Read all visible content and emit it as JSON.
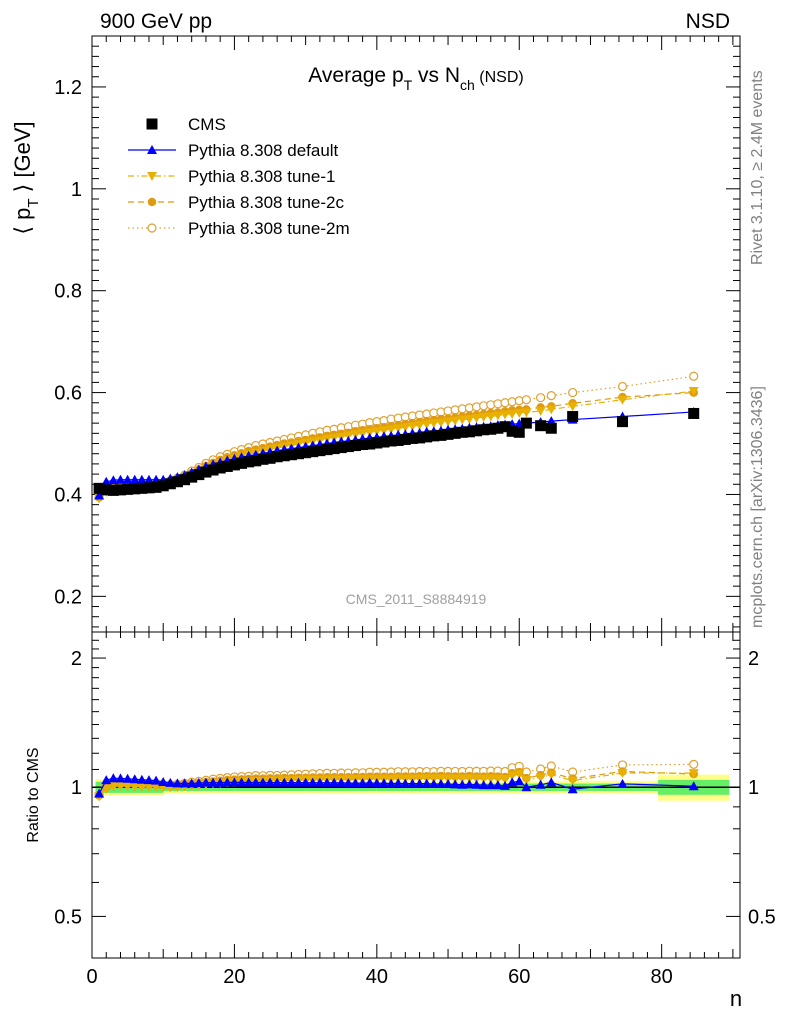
{
  "header": {
    "left": "900 GeV pp",
    "right": "NSD"
  },
  "side_text": {
    "rivet": "Rivet 3.1.10, ≥ 2.4M events",
    "mcplots": "mcplots.cern.ch [arXiv:1306.3436]"
  },
  "colors": {
    "cms": "#000000",
    "default": "#0000ff",
    "tune1": "#e8b000",
    "tune2c": "#e09a10",
    "tune2m": "#e0a030",
    "band_inner": "#66ee66",
    "band_outer": "#ffff88"
  },
  "chart_data": [
    {
      "type": "scatter",
      "title": "Average p_T vs N_ch (NSD)",
      "title_parts": {
        "a": "Average p",
        "a_sub": "T",
        "b": " vs N",
        "b_sub": "ch",
        "c": " (NSD)"
      },
      "ylabel": "⟨ p_T ⟩ [GeV]",
      "ylabel_parts": {
        "a": "⟨ p",
        "sub": "T",
        "b": " ⟩ [GeV]"
      },
      "xlabel": "n",
      "xlim": [
        0,
        91
      ],
      "ylim": [
        0.13,
        1.3
      ],
      "yticks": [
        0.2,
        0.4,
        0.6,
        0.8,
        1,
        1.2
      ],
      "ytick_labels": [
        "0.2",
        "0.4",
        "0.6",
        "0.8",
        "1",
        "1.2"
      ],
      "watermark": "CMS_2011_S8884919",
      "legend_position": "top-left",
      "series": [
        {
          "name": "CMS",
          "marker": "square",
          "line": "none",
          "x": [
            1,
            2,
            3,
            4,
            5,
            6,
            7,
            8,
            9,
            10,
            11,
            12,
            13,
            14,
            15,
            16,
            17,
            18,
            19,
            20,
            21,
            22,
            23,
            24,
            25,
            26,
            27,
            28,
            29,
            30,
            31,
            32,
            33,
            34,
            35,
            36,
            37,
            38,
            39,
            40,
            41,
            42,
            43,
            44,
            45,
            46,
            47,
            48,
            49,
            50,
            51,
            52,
            53,
            54,
            55,
            56,
            57,
            58,
            59,
            60,
            61,
            63,
            64.5,
            67.5,
            74.5,
            84.5
          ],
          "y": [
            0.412,
            0.409,
            0.408,
            0.409,
            0.41,
            0.411,
            0.412,
            0.413,
            0.414,
            0.417,
            0.421,
            0.425,
            0.429,
            0.434,
            0.439,
            0.444,
            0.448,
            0.452,
            0.455,
            0.458,
            0.461,
            0.464,
            0.466,
            0.469,
            0.471,
            0.474,
            0.476,
            0.478,
            0.48,
            0.482,
            0.484,
            0.486,
            0.488,
            0.49,
            0.492,
            0.494,
            0.496,
            0.498,
            0.499,
            0.501,
            0.503,
            0.505,
            0.506,
            0.508,
            0.51,
            0.511,
            0.513,
            0.515,
            0.516,
            0.518,
            0.52,
            0.522,
            0.523,
            0.525,
            0.527,
            0.528,
            0.53,
            0.533,
            0.524,
            0.522,
            0.54,
            0.535,
            0.53,
            0.553,
            0.543,
            0.559
          ]
        },
        {
          "name": "Pythia 8.308 default",
          "marker": "triangle-up",
          "line": "solid",
          "x": [
            1,
            2,
            3,
            4,
            5,
            6,
            7,
            8,
            9,
            10,
            11,
            12,
            13,
            14,
            15,
            16,
            17,
            18,
            19,
            20,
            21,
            22,
            23,
            24,
            25,
            26,
            27,
            28,
            29,
            30,
            31,
            32,
            33,
            34,
            35,
            36,
            37,
            38,
            39,
            40,
            41,
            42,
            43,
            44,
            45,
            46,
            47,
            48,
            49,
            50,
            51,
            52,
            53,
            54,
            55,
            56,
            57,
            58,
            59,
            60,
            61,
            63,
            64.5,
            67.5,
            74.5,
            84.5
          ],
          "y": [
            0.398,
            0.425,
            0.428,
            0.429,
            0.429,
            0.429,
            0.429,
            0.429,
            0.429,
            0.429,
            0.431,
            0.434,
            0.438,
            0.443,
            0.449,
            0.455,
            0.459,
            0.463,
            0.467,
            0.47,
            0.473,
            0.476,
            0.478,
            0.481,
            0.483,
            0.486,
            0.488,
            0.49,
            0.492,
            0.494,
            0.496,
            0.498,
            0.5,
            0.502,
            0.504,
            0.505,
            0.507,
            0.509,
            0.511,
            0.512,
            0.514,
            0.515,
            0.517,
            0.518,
            0.52,
            0.521,
            0.523,
            0.524,
            0.525,
            0.527,
            0.528,
            0.529,
            0.531,
            0.532,
            0.533,
            0.534,
            0.536,
            0.537,
            0.538,
            0.539,
            0.54,
            0.542,
            0.544,
            0.547,
            0.553,
            0.562
          ]
        },
        {
          "name": "Pythia 8.308 tune-1",
          "marker": "triangle-down",
          "line": "dashdot",
          "x": [
            1,
            2,
            3,
            4,
            5,
            6,
            7,
            8,
            9,
            10,
            11,
            12,
            13,
            14,
            15,
            16,
            17,
            18,
            19,
            20,
            21,
            22,
            23,
            24,
            25,
            26,
            27,
            28,
            29,
            30,
            31,
            32,
            33,
            34,
            35,
            36,
            37,
            38,
            39,
            40,
            41,
            42,
            43,
            44,
            45,
            46,
            47,
            48,
            49,
            50,
            51,
            52,
            53,
            54,
            55,
            56,
            57,
            58,
            59,
            60,
            61,
            63,
            64.5,
            67.5,
            74.5,
            84.5
          ],
          "y": [
            0.392,
            0.405,
            0.41,
            0.412,
            0.413,
            0.413,
            0.413,
            0.414,
            0.415,
            0.417,
            0.42,
            0.425,
            0.431,
            0.437,
            0.444,
            0.451,
            0.457,
            0.462,
            0.467,
            0.471,
            0.475,
            0.479,
            0.482,
            0.485,
            0.488,
            0.491,
            0.494,
            0.496,
            0.499,
            0.502,
            0.504,
            0.506,
            0.509,
            0.511,
            0.513,
            0.516,
            0.518,
            0.52,
            0.522,
            0.524,
            0.526,
            0.528,
            0.53,
            0.532,
            0.534,
            0.536,
            0.538,
            0.54,
            0.541,
            0.543,
            0.545,
            0.547,
            0.548,
            0.55,
            0.552,
            0.553,
            0.555,
            0.557,
            0.558,
            0.56,
            0.561,
            0.564,
            0.567,
            0.573,
            0.586,
            0.603
          ]
        },
        {
          "name": "Pythia 8.308 tune-2c",
          "marker": "circle",
          "line": "dashed",
          "x": [
            1,
            2,
            3,
            4,
            5,
            6,
            7,
            8,
            9,
            10,
            11,
            12,
            13,
            14,
            15,
            16,
            17,
            18,
            19,
            20,
            21,
            22,
            23,
            24,
            25,
            26,
            27,
            28,
            29,
            30,
            31,
            32,
            33,
            34,
            35,
            36,
            37,
            38,
            39,
            40,
            41,
            42,
            43,
            44,
            45,
            46,
            47,
            48,
            49,
            50,
            51,
            52,
            53,
            54,
            55,
            56,
            57,
            58,
            59,
            60,
            61,
            63,
            64.5,
            67.5,
            74.5,
            84.5
          ],
          "y": [
            0.394,
            0.409,
            0.414,
            0.416,
            0.417,
            0.417,
            0.417,
            0.418,
            0.419,
            0.421,
            0.424,
            0.429,
            0.435,
            0.442,
            0.449,
            0.456,
            0.462,
            0.468,
            0.473,
            0.477,
            0.481,
            0.485,
            0.488,
            0.491,
            0.494,
            0.497,
            0.5,
            0.502,
            0.505,
            0.507,
            0.51,
            0.512,
            0.515,
            0.517,
            0.519,
            0.521,
            0.524,
            0.526,
            0.528,
            0.53,
            0.532,
            0.534,
            0.536,
            0.538,
            0.54,
            0.542,
            0.544,
            0.546,
            0.548,
            0.549,
            0.551,
            0.553,
            0.555,
            0.556,
            0.558,
            0.56,
            0.561,
            0.563,
            0.565,
            0.566,
            0.567,
            0.571,
            0.573,
            0.579,
            0.591,
            0.6
          ]
        },
        {
          "name": "Pythia 8.308 tune-2m",
          "marker": "circle-open",
          "line": "dotted",
          "x": [
            1,
            2,
            3,
            4,
            5,
            6,
            7,
            8,
            9,
            10,
            11,
            12,
            13,
            14,
            15,
            16,
            17,
            18,
            19,
            20,
            21,
            22,
            23,
            24,
            25,
            26,
            27,
            28,
            29,
            30,
            31,
            32,
            33,
            34,
            35,
            36,
            37,
            38,
            39,
            40,
            41,
            42,
            43,
            44,
            45,
            46,
            47,
            48,
            49,
            50,
            51,
            52,
            53,
            54,
            55,
            56,
            57,
            58,
            59,
            60,
            61,
            63,
            64.5,
            67.5,
            74.5,
            84.5
          ],
          "y": [
            0.396,
            0.411,
            0.416,
            0.418,
            0.419,
            0.419,
            0.419,
            0.42,
            0.421,
            0.423,
            0.427,
            0.432,
            0.438,
            0.446,
            0.453,
            0.461,
            0.468,
            0.474,
            0.479,
            0.484,
            0.488,
            0.492,
            0.496,
            0.499,
            0.502,
            0.505,
            0.508,
            0.511,
            0.514,
            0.517,
            0.52,
            0.523,
            0.526,
            0.528,
            0.531,
            0.533,
            0.536,
            0.538,
            0.541,
            0.543,
            0.545,
            0.548,
            0.55,
            0.552,
            0.554,
            0.556,
            0.558,
            0.56,
            0.562,
            0.564,
            0.566,
            0.568,
            0.57,
            0.572,
            0.574,
            0.576,
            0.578,
            0.58,
            0.582,
            0.584,
            0.586,
            0.59,
            0.594,
            0.6,
            0.612,
            0.632
          ]
        }
      ]
    },
    {
      "type": "scatter",
      "title": "",
      "ylabel": "Ratio to CMS",
      "xlabel": "n",
      "xlim": [
        0,
        91
      ],
      "ylim": [
        0.4,
        2.3
      ],
      "log_scale_y": true,
      "yticks": [
        0.5,
        1,
        2
      ],
      "ytick_labels": [
        "0.5",
        "1",
        "2"
      ],
      "xticks": [
        0,
        20,
        40,
        60,
        80
      ],
      "xtick_labels": [
        "0",
        "20",
        "40",
        "60",
        "80"
      ],
      "uncertainty_band": {
        "x": [
          0.5,
          10,
          20,
          30,
          40,
          50,
          60,
          70,
          79.5,
          89.5
        ],
        "inner_half_width": [
          0.03,
          0.02,
          0.02,
          0.02,
          0.02,
          0.02,
          0.02,
          0.02,
          0.04,
          0.04
        ],
        "outer_half_width": [
          0.045,
          0.035,
          0.035,
          0.035,
          0.035,
          0.035,
          0.035,
          0.035,
          0.07,
          0.07
        ]
      },
      "series": [
        {
          "name": "Pythia 8.308 default",
          "ref": 1
        },
        {
          "name": "Pythia 8.308 tune-1",
          "ref": 2
        },
        {
          "name": "Pythia 8.308 tune-2c",
          "ref": 3
        },
        {
          "name": "Pythia 8.308 tune-2m",
          "ref": 4
        }
      ]
    }
  ]
}
